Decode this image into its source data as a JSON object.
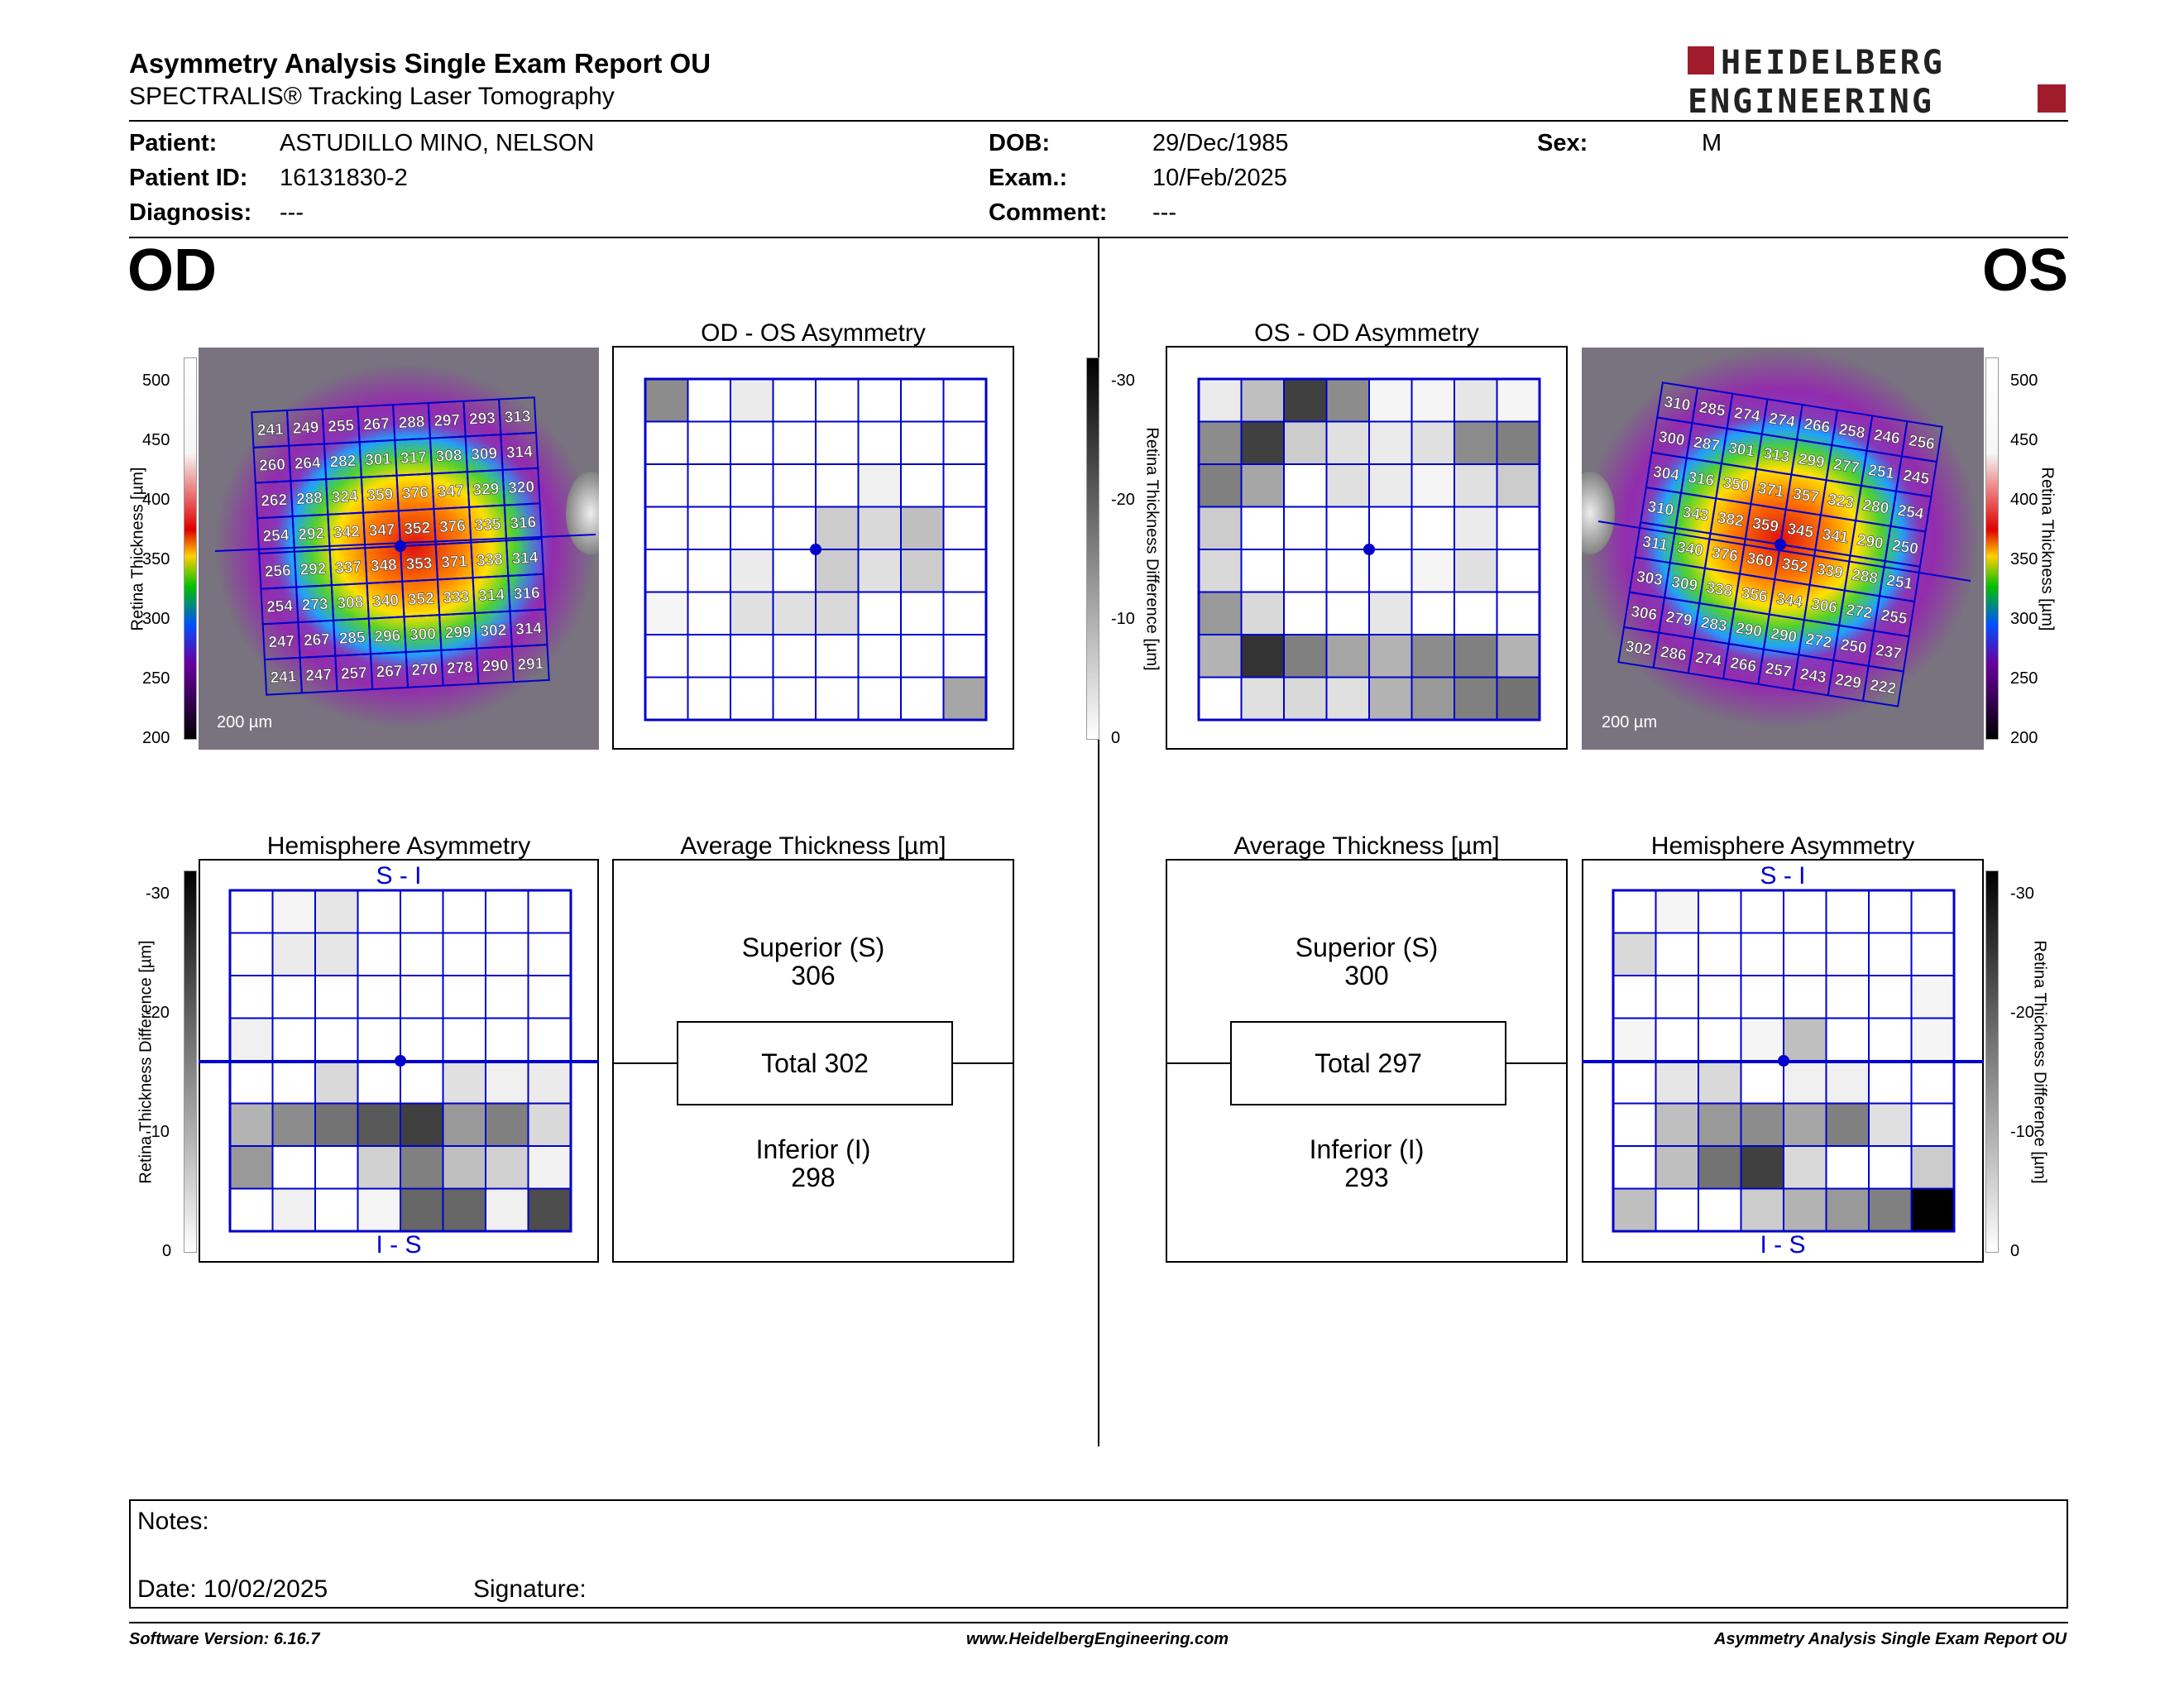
{
  "header": {
    "title": "Asymmetry Analysis Single Exam Report OU",
    "subtitle": "SPECTRALIS® Tracking Laser Tomography",
    "logo_line1": "HEIDELBERG",
    "logo_line2": "ENGINEERING"
  },
  "patient": {
    "patient_label": "Patient:",
    "patient_value": "ASTUDILLO MINO, NELSON",
    "id_label": "Patient ID:",
    "id_value": "16131830-2",
    "diag_label": "Diagnosis:",
    "diag_value": "---",
    "dob_label": "DOB:",
    "dob_value": "29/Dec/1985",
    "exam_label": "Exam.:",
    "exam_value": "10/Feb/2025",
    "comment_label": "Comment:",
    "comment_value": "---",
    "sex_label": "Sex:",
    "sex_value": "M"
  },
  "eyes": {
    "left": "OD",
    "right": "OS"
  },
  "titles": {
    "od_asym": "OD - OS Asymmetry",
    "os_asym": "OS - OD Asymmetry",
    "hemi": "Hemisphere Asymmetry",
    "avg": "Average Thickness [µm]",
    "si": "S - I",
    "is": "I - S"
  },
  "scale": {
    "thick_ticks": [
      "500",
      "450",
      "400",
      "350",
      "300",
      "250",
      "200"
    ],
    "thick_label": "Retina Thickness [µm]",
    "diff_ticks": [
      "-30",
      "-20",
      "-10",
      "0"
    ],
    "diff_label": "Retina Thickness Difference [µm]",
    "scalebar": "200 µm"
  },
  "od": {
    "thickness": [
      [
        241,
        249,
        255,
        267,
        288,
        297,
        293,
        313
      ],
      [
        260,
        264,
        282,
        301,
        317,
        308,
        309,
        314
      ],
      [
        262,
        288,
        324,
        359,
        376,
        347,
        329,
        320
      ],
      [
        254,
        292,
        342,
        347,
        352,
        376,
        335,
        316
      ],
      [
        256,
        292,
        337,
        348,
        353,
        371,
        338,
        314
      ],
      [
        254,
        273,
        308,
        340,
        352,
        333,
        314,
        316
      ],
      [
        247,
        267,
        285,
        296,
        300,
        299,
        302,
        314
      ],
      [
        241,
        247,
        257,
        267,
        270,
        278,
        290,
        291
      ]
    ],
    "asym_shades": [
      [
        0.45,
        0,
        0.08,
        0,
        0,
        0,
        0,
        0
      ],
      [
        0,
        0,
        0,
        0,
        0,
        0,
        0,
        0
      ],
      [
        0,
        0,
        0,
        0,
        0,
        0.06,
        0,
        0
      ],
      [
        0,
        0,
        0,
        0,
        0.2,
        0.15,
        0.25,
        0
      ],
      [
        0,
        0,
        0.08,
        0,
        0.2,
        0.12,
        0.2,
        0
      ],
      [
        0.04,
        0,
        0.12,
        0.12,
        0.15,
        0,
        0,
        0
      ],
      [
        0,
        0,
        0,
        0,
        0,
        0,
        0,
        0
      ],
      [
        0,
        0,
        0,
        0,
        0,
        0,
        0,
        0.35
      ]
    ],
    "hemi_shades": [
      [
        0,
        0.04,
        0.1,
        0,
        0,
        0,
        0,
        0
      ],
      [
        0,
        0.08,
        0.1,
        0,
        0,
        0,
        0,
        0
      ],
      [
        0,
        0,
        0,
        0,
        0,
        0,
        0,
        0
      ],
      [
        0.06,
        0,
        0,
        0,
        0,
        0,
        0,
        0
      ],
      [
        0,
        0,
        0.15,
        0,
        0,
        0.12,
        0.06,
        0.08
      ],
      [
        0.3,
        0.45,
        0.55,
        0.65,
        0.75,
        0.4,
        0.5,
        0.15
      ],
      [
        0.4,
        0,
        0,
        0.18,
        0.5,
        0.25,
        0.18,
        0.05
      ],
      [
        0,
        0.06,
        0,
        0.04,
        0.6,
        0.6,
        0.06,
        0.7
      ]
    ],
    "avg": {
      "superior_label": "Superior (S)",
      "superior": "306",
      "total": "Total 302",
      "inferior_label": "Inferior (I)",
      "inferior": "298"
    }
  },
  "os": {
    "thickness": [
      [
        310,
        285,
        274,
        274,
        266,
        258,
        246,
        256
      ],
      [
        300,
        287,
        301,
        313,
        299,
        277,
        251,
        245
      ],
      [
        304,
        316,
        350,
        371,
        357,
        323,
        280,
        254
      ],
      [
        310,
        343,
        382,
        359,
        345,
        341,
        290,
        250
      ],
      [
        311,
        340,
        376,
        360,
        352,
        339,
        288,
        251
      ],
      [
        303,
        309,
        338,
        356,
        344,
        306,
        272,
        255
      ],
      [
        306,
        279,
        283,
        290,
        290,
        272,
        250,
        237
      ],
      [
        302,
        286,
        274,
        266,
        257,
        243,
        229,
        222
      ]
    ],
    "asym_shades": [
      [
        0.08,
        0.25,
        0.75,
        0.45,
        0.04,
        0.04,
        0.1,
        0.04
      ],
      [
        0.45,
        0.75,
        0.2,
        0.12,
        0.08,
        0.12,
        0.45,
        0.5
      ],
      [
        0.5,
        0.35,
        0,
        0.12,
        0.08,
        0.04,
        0.12,
        0.2
      ],
      [
        0.2,
        0,
        0,
        0,
        0,
        0,
        0.08,
        0
      ],
      [
        0.15,
        0,
        0,
        0,
        0,
        0.04,
        0.12,
        0
      ],
      [
        0.4,
        0.15,
        0,
        0,
        0.1,
        0,
        0,
        0
      ],
      [
        0.3,
        0.8,
        0.5,
        0.35,
        0.3,
        0.45,
        0.5,
        0.3
      ],
      [
        0,
        0.12,
        0.15,
        0.12,
        0.3,
        0.4,
        0.5,
        0.55
      ]
    ],
    "hemi_shades": [
      [
        0,
        0.04,
        0,
        0,
        0,
        0,
        0,
        0
      ],
      [
        0.15,
        0,
        0,
        0,
        0,
        0,
        0,
        0
      ],
      [
        0,
        0,
        0,
        0,
        0,
        0,
        0,
        0.04
      ],
      [
        0.04,
        0,
        0,
        0.04,
        0.25,
        0,
        0,
        0.04
      ],
      [
        0,
        0.1,
        0.15,
        0,
        0.06,
        0.06,
        0,
        0
      ],
      [
        0,
        0.25,
        0.4,
        0.45,
        0.35,
        0.5,
        0.12,
        0
      ],
      [
        0,
        0.25,
        0.55,
        0.75,
        0.15,
        0,
        0,
        0.2
      ],
      [
        0.25,
        0,
        0,
        0.2,
        0.3,
        0.4,
        0.5,
        1.0
      ]
    ],
    "avg": {
      "superior_label": "Superior (S)",
      "superior": "300",
      "total": "Total 297",
      "inferior_label": "Inferior (I)",
      "inferior": "293"
    }
  },
  "notes": {
    "notes_label": "Notes:",
    "date_label": "Date: 10/02/2025",
    "signature_label": "Signature:"
  },
  "footer": {
    "left": "Software Version: 6.16.7",
    "center": "www.HeidelbergEngineering.com",
    "right": "Asymmetry Analysis Single Exam Report OU"
  },
  "colors": {
    "grid_blue": "#0000cc",
    "logo_red": "#a01c2c"
  }
}
